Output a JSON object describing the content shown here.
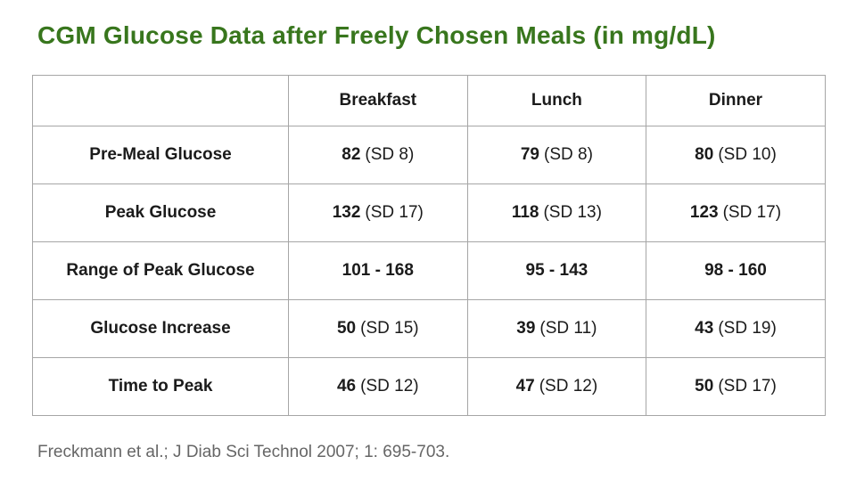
{
  "header": {
    "title": "CGM Glucose Data after Freely Chosen Meals (in mg/dL)",
    "title_color": "#38761d"
  },
  "table": {
    "border_color": "#a6a6a6",
    "columns": [
      "",
      "Breakfast",
      "Lunch",
      "Dinner"
    ],
    "rows": [
      {
        "label": "Pre-Meal Glucose",
        "cells": [
          {
            "value": "82",
            "sd": "(SD 8)"
          },
          {
            "value": "79",
            "sd": "(SD 8)"
          },
          {
            "value": "80",
            "sd": "(SD 10)"
          }
        ]
      },
      {
        "label": "Peak Glucose",
        "cells": [
          {
            "value": "132",
            "sd": "(SD 17)"
          },
          {
            "value": "118",
            "sd": "(SD 13)"
          },
          {
            "value": "123",
            "sd": "(SD 17)"
          }
        ]
      },
      {
        "label": "Range of Peak Glucose",
        "cells": [
          {
            "value": "101 - 168",
            "sd": ""
          },
          {
            "value": "95 - 143",
            "sd": ""
          },
          {
            "value": "98 - 160",
            "sd": ""
          }
        ]
      },
      {
        "label": "Glucose Increase",
        "cells": [
          {
            "value": "50",
            "sd": "(SD 15)"
          },
          {
            "value": "39",
            "sd": "(SD 11)"
          },
          {
            "value": "43",
            "sd": "(SD 19)"
          }
        ]
      },
      {
        "label": "Time to Peak",
        "cells": [
          {
            "value": "46",
            "sd": "(SD 12)"
          },
          {
            "value": "47",
            "sd": "(SD 12)"
          },
          {
            "value": "50",
            "sd": "(SD 17)"
          }
        ]
      }
    ]
  },
  "footer": {
    "citation": "Freckmann et al.; J Diab Sci Technol 2007; 1: 695-703.",
    "citation_color": "#666666"
  },
  "chart_data": {
    "type": "table",
    "title": "CGM Glucose Data after Freely Chosen Meals (in mg/dL)",
    "columns": [
      "",
      "Breakfast",
      "Lunch",
      "Dinner"
    ],
    "rows": [
      [
        "Pre-Meal Glucose",
        "82 (SD 8)",
        "79 (SD 8)",
        "80 (SD 10)"
      ],
      [
        "Peak Glucose",
        "132 (SD 17)",
        "118 (SD 13)",
        "123 (SD 17)"
      ],
      [
        "Range of Peak Glucose",
        "101 - 168",
        "95 - 143",
        "98 - 160"
      ],
      [
        "Glucose Increase",
        "50 (SD 15)",
        "39 (SD 11)",
        "43 (SD 19)"
      ],
      [
        "Time to Peak",
        "46 (SD 12)",
        "47 (SD 12)",
        "50 (SD 17)"
      ]
    ],
    "units": "mg/dL",
    "caption": "Freckmann et al.; J Diab Sci Technol 2007; 1: 695-703."
  }
}
